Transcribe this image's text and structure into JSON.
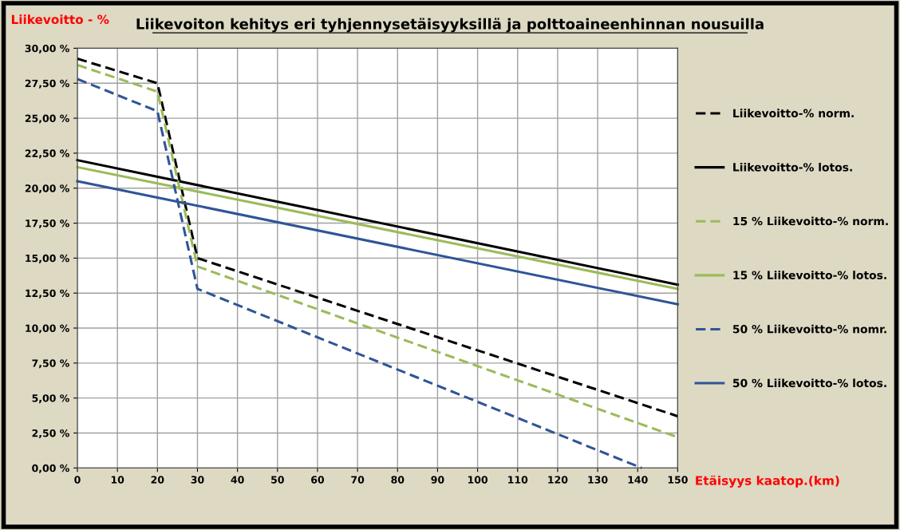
{
  "chart_data": {
    "type": "line",
    "title": "Liikevoiton kehitys eri tyhjennysetäisyyksillä ja polttoaineenhinnan nousuilla",
    "ylabel": "Liikevoitto - %",
    "xlabel": "Etäisyys kaatop.(km)",
    "x": [
      0,
      20,
      30,
      150
    ],
    "series": [
      {
        "name": "Liikevoitto-% norm.",
        "color": "#000000",
        "line_style": "dashed",
        "values": [
          29.25,
          27.5,
          15.0,
          3.7
        ]
      },
      {
        "name": "Liikevoitto-% lotos.",
        "color": "#000000",
        "line_style": "solid",
        "x": [
          0,
          150
        ],
        "values": [
          22.0,
          13.1
        ]
      },
      {
        "name": "15 % Liikevoitto-% norm.",
        "color": "#9bbb59",
        "line_style": "dashed",
        "values": [
          28.8,
          26.9,
          14.4,
          2.2
        ]
      },
      {
        "name": "15 % Liikevoitto-% lotos.",
        "color": "#9bbb59",
        "line_style": "solid",
        "x": [
          0,
          150
        ],
        "values": [
          21.5,
          12.8
        ]
      },
      {
        "name": "50 % Liikevoitto-% nomr.",
        "color": "#2f5597",
        "line_style": "dashed",
        "x": [
          0,
          20,
          30,
          141
        ],
        "values": [
          27.8,
          25.5,
          12.8,
          0.0
        ]
      },
      {
        "name": "50 % Liikevoitto-% lotos.",
        "color": "#2f5597",
        "line_style": "solid",
        "x": [
          0,
          150
        ],
        "values": [
          20.5,
          11.7
        ]
      }
    ],
    "xlim": [
      0,
      150
    ],
    "xticks": [
      0,
      10,
      20,
      30,
      40,
      50,
      60,
      70,
      80,
      90,
      100,
      110,
      120,
      130,
      140,
      150
    ],
    "ylim": [
      0,
      30
    ],
    "yticks": [
      {
        "value": 0,
        "label": "0,00 %"
      },
      {
        "value": 2.5,
        "label": "2,50 %"
      },
      {
        "value": 5,
        "label": "5,00 %"
      },
      {
        "value": 7.5,
        "label": "7,50 %"
      },
      {
        "value": 10,
        "label": "10,00 %"
      },
      {
        "value": 12.5,
        "label": "12,50 %"
      },
      {
        "value": 15,
        "label": "15,00 %"
      },
      {
        "value": 17.5,
        "label": "17,50 %"
      },
      {
        "value": 20,
        "label": "20,00 %"
      },
      {
        "value": 22.5,
        "label": "22,50 %"
      },
      {
        "value": 25,
        "label": "25,00 %"
      },
      {
        "value": 27.5,
        "label": "27,50 %"
      },
      {
        "value": 30,
        "label": "30,00 %"
      }
    ],
    "grid": true,
    "legend": "right",
    "marker": "none"
  }
}
